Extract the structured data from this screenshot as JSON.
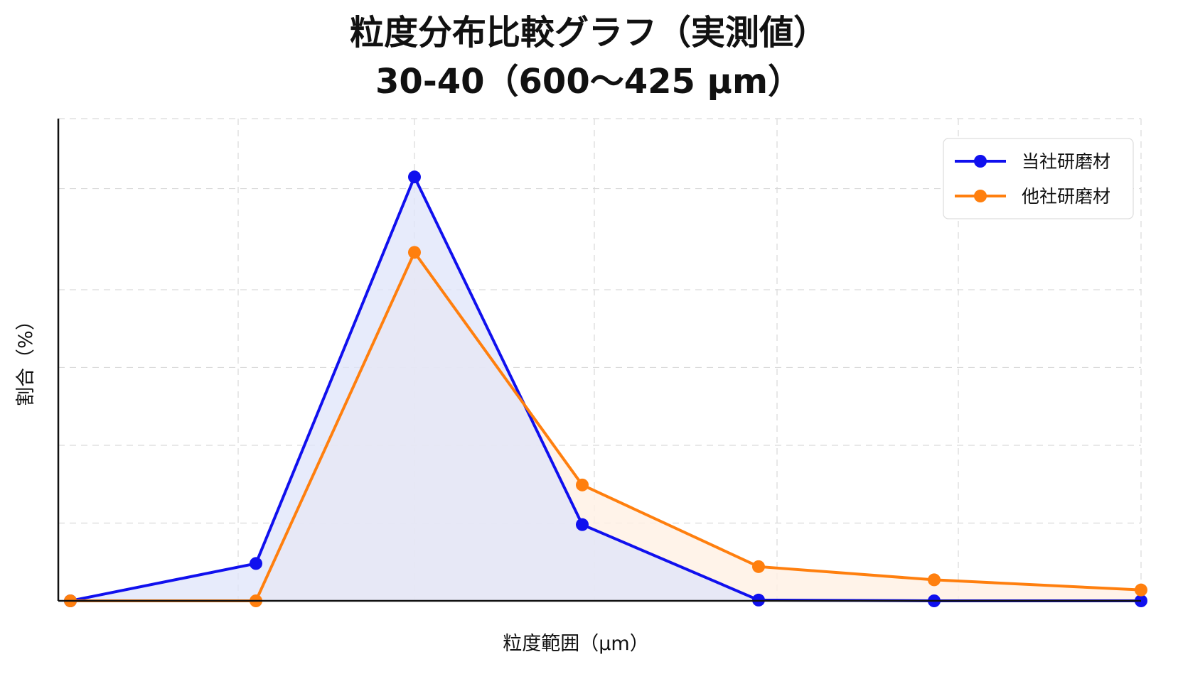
{
  "chart_data": {
    "type": "area",
    "title": "粒度分布比較グラフ（実測値）",
    "subtitle": "30-40（600～425 μm）",
    "xlabel": "粒度範囲（μm）",
    "ylabel": "割合（%）",
    "x": [
      0,
      1,
      2,
      3,
      4,
      5,
      6
    ],
    "series": [
      {
        "name": "当社研磨材",
        "values": [
          0,
          4.8,
          54.5,
          9.8,
          0.1,
          0,
          0
        ],
        "color": "#1010ee",
        "fill": "#dfe4f9"
      },
      {
        "name": "他社研磨材",
        "values": [
          0,
          0,
          44.8,
          14.9,
          4.4,
          2.7,
          1.4
        ],
        "color": "#ff7f0e",
        "fill": "#fff0e4"
      }
    ],
    "ylim": [
      0,
      62
    ],
    "xlim": [
      0,
      6
    ],
    "y_gridlines": [
      10,
      20,
      30,
      40,
      53
    ],
    "x_gridlines": [
      1,
      2,
      3,
      4,
      5,
      6
    ],
    "grid": true,
    "legend": "top-right",
    "tick_labels_shown": false
  }
}
